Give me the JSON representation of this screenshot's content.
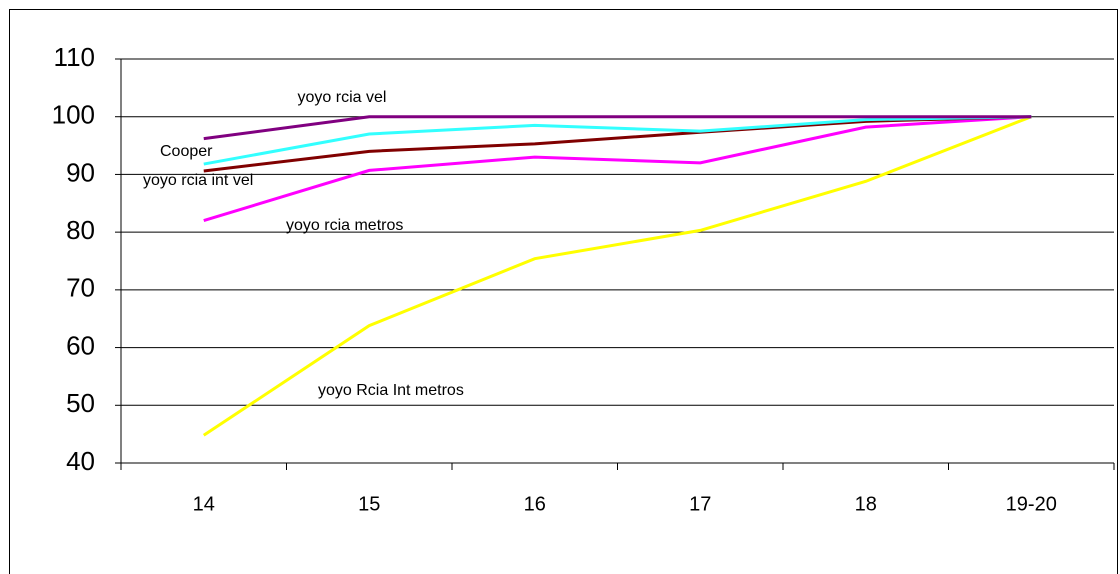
{
  "chart_data": {
    "type": "line",
    "categories": [
      "14",
      "15",
      "16",
      "17",
      "18",
      "19-20"
    ],
    "series": [
      {
        "name": "yoyo Rcia Int metros",
        "color": "#ffff00",
        "values": [
          44.8,
          63.8,
          75.4,
          80.3,
          88.8,
          100
        ]
      },
      {
        "name": "yoyo rcia metros",
        "color": "#ff00ff",
        "values": [
          82,
          90.7,
          93,
          92,
          98.2,
          100
        ]
      },
      {
        "name": "yoyo rcia int vel",
        "color": "#800000",
        "values": [
          90.6,
          94,
          95.3,
          97.3,
          99.2,
          100
        ]
      },
      {
        "name": "Cooper",
        "color": "#33ffff",
        "values": [
          91.8,
          97,
          98.5,
          97.5,
          99.5,
          100
        ]
      },
      {
        "name": "yoyo rcia vel",
        "color": "#800080",
        "values": [
          96.2,
          100,
          100,
          100,
          100,
          100
        ]
      }
    ],
    "ylim": [
      40,
      110
    ],
    "yticks": [
      40,
      50,
      60,
      70,
      80,
      90,
      100,
      110
    ],
    "grid": true
  }
}
